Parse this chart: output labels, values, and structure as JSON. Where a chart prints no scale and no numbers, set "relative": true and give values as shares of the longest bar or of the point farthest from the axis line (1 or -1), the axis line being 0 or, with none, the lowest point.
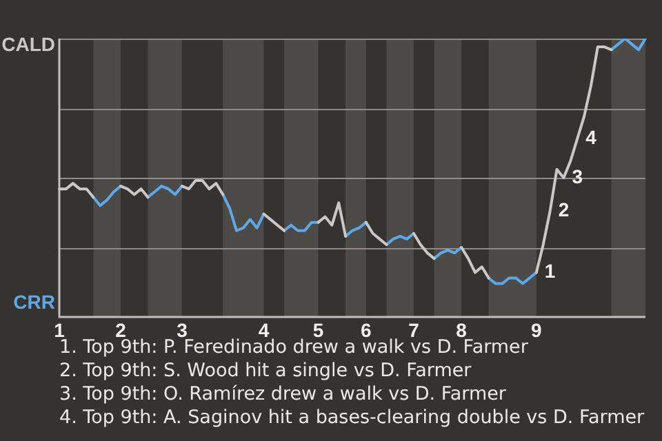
{
  "chart_data": {
    "type": "line",
    "relative": true,
    "legend": false,
    "marker": "none",
    "line_style": "solid",
    "categories": [
      "1",
      null,
      null,
      null,
      null,
      null,
      null,
      null,
      null,
      "2",
      null,
      null,
      null,
      null,
      null,
      null,
      null,
      null,
      "3",
      null,
      null,
      null,
      null,
      null,
      null,
      null,
      null,
      null,
      null,
      null,
      "4",
      null,
      null,
      null,
      null,
      null,
      null,
      null,
      "5",
      null,
      null,
      null,
      null,
      null,
      null,
      "6",
      null,
      null,
      null,
      null,
      null,
      null,
      "7",
      null,
      null,
      null,
      null,
      null,
      null,
      "8",
      null,
      null,
      null,
      null,
      null,
      null,
      null,
      null,
      null,
      null,
      "9",
      null,
      null,
      null,
      null,
      null,
      null,
      null,
      null,
      null,
      null,
      null,
      null,
      null,
      null,
      null,
      null
    ],
    "ref_lines": [
      {
        "axis": "y",
        "value": 0.25,
        "color": "#8c8c8c"
      },
      {
        "axis": "y",
        "value": 0.5,
        "color": "#8c8c8c"
      },
      {
        "axis": "y",
        "value": 0.75,
        "color": "#8c8c8c"
      },
      {
        "axis": "y",
        "value": 1,
        "color": "#8c8c8c"
      }
    ],
    "series": [
      {
        "color": "#c8c8c8",
        "values": [
          0.46,
          0.46,
          0.48,
          0.46,
          0.46,
          0.43,
          null,
          null,
          null,
          0.47,
          0.46,
          0.44,
          0.46,
          0.43,
          null,
          null,
          null,
          null,
          0.47,
          0.46,
          0.49,
          0.49,
          0.46,
          0.48,
          0.44,
          null,
          null,
          null,
          null,
          null,
          0.37,
          0.35,
          0.33,
          0.31,
          null,
          null,
          null,
          null,
          0.34,
          0.36,
          0.33,
          0.41,
          0.29,
          null,
          null,
          0.34,
          0.3,
          0.28,
          0.26,
          null,
          null,
          null,
          0.3,
          0.26,
          0.23,
          0.21,
          null,
          null,
          null,
          0.25,
          0.21,
          0.16,
          0.18,
          0.14,
          null,
          null,
          null,
          null,
          null,
          null,
          0.16,
          0.26,
          0.38,
          0.53,
          0.5,
          0.56,
          0.64,
          0.72,
          0.83,
          0.97,
          0.97,
          0.96,
          null,
          null,
          null,
          null,
          null
        ]
      },
      {
        "color": "#5fa8e8",
        "values": [
          null,
          null,
          null,
          null,
          null,
          0.43,
          0.4,
          0.42,
          0.45,
          0.47,
          null,
          null,
          null,
          0.43,
          0.45,
          0.47,
          0.46,
          0.44,
          0.47,
          null,
          null,
          null,
          null,
          null,
          0.44,
          0.39,
          0.31,
          0.32,
          0.35,
          0.32,
          0.37,
          null,
          null,
          0.31,
          0.33,
          0.31,
          0.31,
          0.34,
          0.34,
          null,
          null,
          null,
          0.29,
          0.31,
          0.32,
          0.34,
          null,
          null,
          0.26,
          0.28,
          0.29,
          0.28,
          0.3,
          null,
          null,
          0.21,
          0.23,
          0.24,
          0.23,
          0.25,
          null,
          null,
          null,
          0.14,
          0.12,
          0.12,
          0.14,
          0.14,
          0.12,
          0.14,
          0.16,
          null,
          null,
          null,
          null,
          null,
          null,
          null,
          null,
          null,
          null,
          0.96,
          0.98,
          1,
          0.98,
          0.96,
          1
        ]
      }
    ],
    "annotations": [
      "CALD",
      "CRR",
      {
        "text": "1",
        "x": "9",
        "y": 0.16
      },
      "2",
      "3",
      "4",
      "1. Top 9th: P. Feredinado drew a walk vs D. Farmer",
      "2. Top 9th: S. Wood hit a single vs D. Farmer",
      "3. Top 9th: O. Ramírez drew a walk vs D. Farmer",
      "4. Top 9th: A. Saginov hit a bases-clearing double vs D. Farmer"
    ]
  }
}
